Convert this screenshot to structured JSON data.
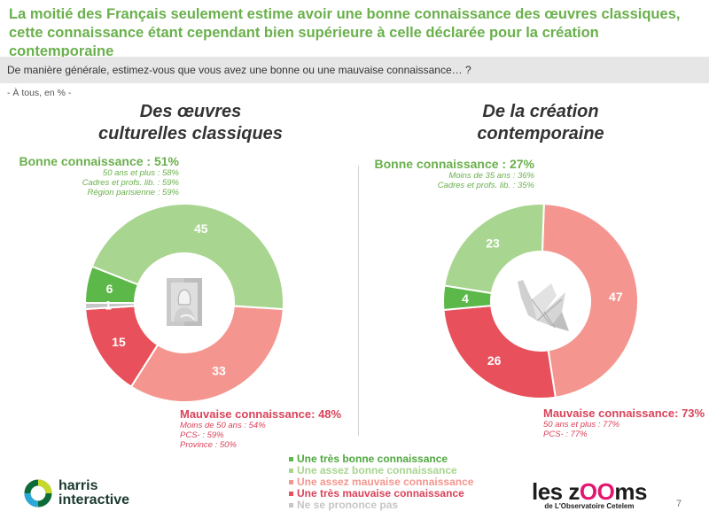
{
  "headline": "La moitié des Français seulement estime avoir une bonne connaissance des œuvres classiques, cette connaissance étant cependant bien supérieure à celle déclarée pour la création contemporaine",
  "question": "De manière générale, estimez-vous que vous avez une bonne ou une mauvaise connaissance… ?",
  "base": "- À tous, en % -",
  "legend": [
    {
      "label": "Une très bonne connaissance",
      "color": "#5cb848"
    },
    {
      "label": "Une assez bonne connaissance",
      "color": "#a8d58f"
    },
    {
      "label": "Une assez mauvaise connaissance",
      "color": "#f4968f"
    },
    {
      "label": "Une très mauvaise connaissance",
      "color": "#e8505b"
    },
    {
      "label": "Ne se prononce pas",
      "color": "#c6c6c6"
    }
  ],
  "chart_data": [
    {
      "type": "pie",
      "variant": "donut",
      "title": "Des œuvres culturelles classiques",
      "title_lines": [
        "Des œuvres",
        "culturelles classiques"
      ],
      "center_icon": "mona-lisa-painting-icon",
      "categories": [
        "Une assez mauvaise connaissance",
        "Une très mauvaise connaissance",
        "Ne se prononce pas",
        "Une très bonne connaissance",
        "Une assez bonne connaissance"
      ],
      "values": [
        33,
        15,
        1,
        6,
        45
      ],
      "labels": [
        "33",
        "15",
        "1",
        "6",
        "45"
      ],
      "colors": [
        "#f4968f",
        "#e8505b",
        "#c6c6c6",
        "#5cb848",
        "#a8d58f"
      ],
      "good": {
        "heading": "Bonne connaissance : 51%",
        "details": [
          "50 ans et plus : 58%",
          "Cadres et profs. lib. : 59%",
          "Région parisienne : 59%"
        ]
      },
      "bad": {
        "heading": "Mauvaise connaissance: 48%",
        "details": [
          "Moins de 50 ans : 54%",
          "PCS- : 59%",
          "Province : 50%"
        ]
      }
    },
    {
      "type": "pie",
      "variant": "donut",
      "title": "De la création contemporaine",
      "title_lines": [
        "De la création",
        "contemporaine"
      ],
      "center_icon": "origami-crane-icon",
      "categories": [
        "Une assez mauvaise connaissance",
        "Une très mauvaise connaissance",
        "Une très bonne connaissance",
        "Une assez bonne connaissance"
      ],
      "values": [
        47,
        26,
        4,
        23
      ],
      "labels": [
        "47",
        "26",
        "4",
        "23"
      ],
      "colors": [
        "#f4968f",
        "#e8505b",
        "#5cb848",
        "#a8d58f"
      ],
      "good": {
        "heading": "Bonne connaissance : 27%",
        "details": [
          "Moins de 35 ans : 36%",
          "Cadres et profs. lib. : 35%"
        ]
      },
      "bad": {
        "heading": "Mauvaise connaissance: 73%",
        "details": [
          "50 ans et plus : 77%",
          "PCS- : 77%"
        ]
      }
    }
  ],
  "footer": {
    "harris_line1": "harris",
    "harris_line2": "interactive",
    "zooms_pre": "les z",
    "zooms_oo": "OO",
    "zooms_post": "ms",
    "zooms_sub": "de L'Observatoire Cetelem",
    "page_number": "7"
  }
}
